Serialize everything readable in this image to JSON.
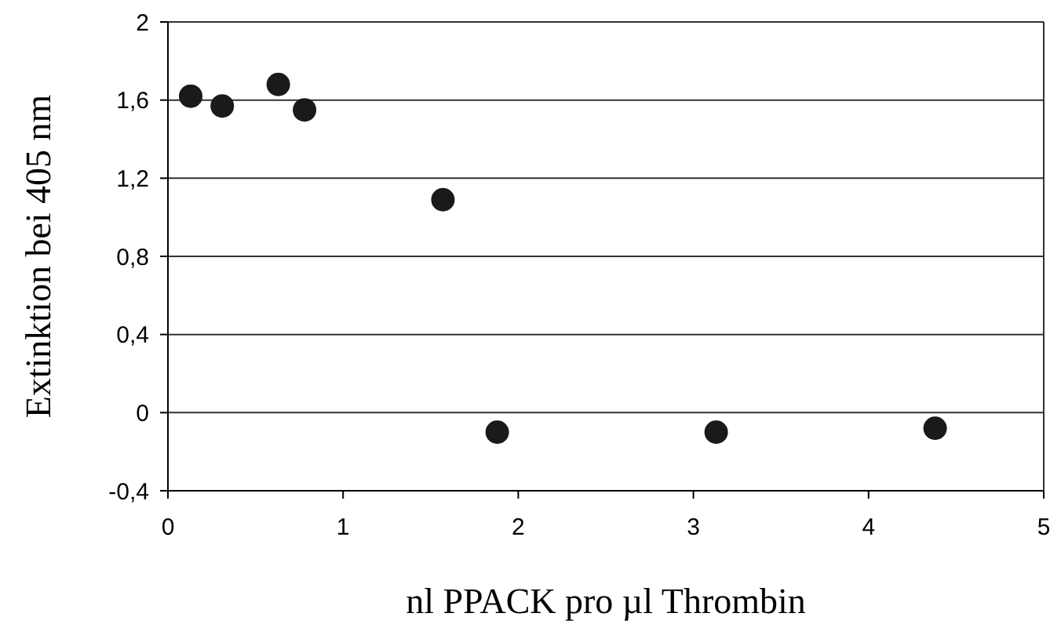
{
  "chart_data": {
    "type": "scatter",
    "xlabel": "nl PPACK pro µl Thrombin",
    "ylabel": "Extinktion bei 405 nm",
    "x": [
      0.13,
      0.31,
      0.63,
      0.78,
      1.57,
      1.88,
      3.13,
      4.38
    ],
    "values": [
      1.62,
      1.57,
      1.68,
      1.55,
      1.09,
      -0.1,
      -0.1,
      -0.08
    ],
    "color": "#1a1a1a",
    "marker": "circle",
    "xlim": [
      0,
      5
    ],
    "xticks": [
      0,
      1,
      2,
      3,
      4,
      5
    ],
    "ylim": [
      -0.4,
      2
    ],
    "yticks": [
      {
        "value": -0.4,
        "label": "-0,4"
      },
      0,
      {
        "value": 0.4,
        "label": "0,4"
      },
      {
        "value": 0.8,
        "label": "0,8"
      },
      {
        "value": 1.2,
        "label": "1,2"
      },
      {
        "value": 1.6,
        "label": "1,6"
      },
      2
    ],
    "grid": "y"
  }
}
